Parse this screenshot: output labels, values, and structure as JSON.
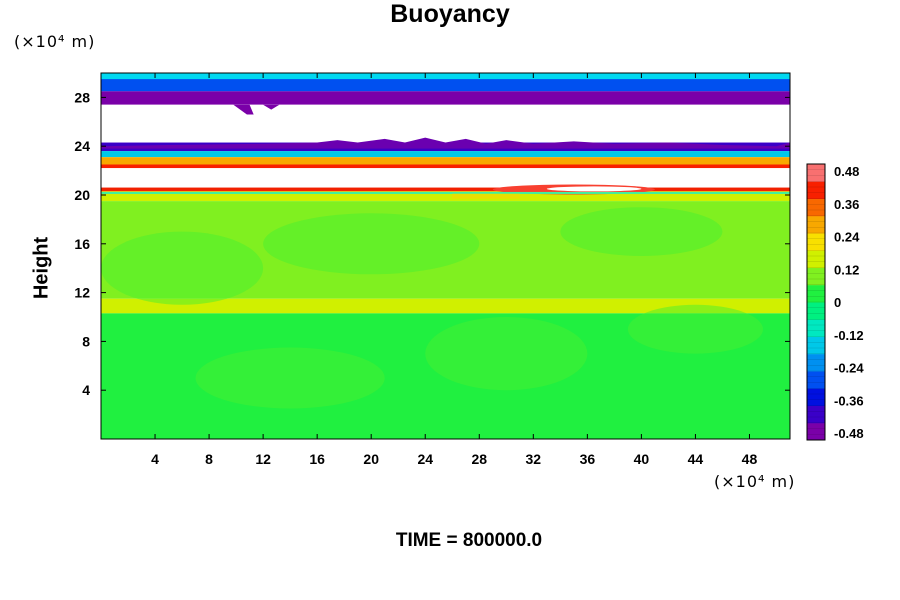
{
  "chart_data": {
    "type": "heatmap",
    "title": "Buoyancy",
    "ylabel": "Height",
    "xlabel": "",
    "x_unit": "(×10⁴ m)",
    "y_unit": "(×10⁴ m)",
    "xlim": [
      0,
      51
    ],
    "ylim": [
      0,
      30
    ],
    "x_ticks": [
      4,
      8,
      12,
      16,
      20,
      24,
      28,
      32,
      36,
      40,
      44,
      48
    ],
    "y_ticks": [
      4,
      8,
      12,
      16,
      20,
      24,
      28
    ],
    "colorbar": {
      "range": [
        -0.48,
        0.48
      ],
      "ticks": [
        "0.48",
        "0.36",
        "0.24",
        "0.12",
        "0",
        "-0.12",
        "-0.24",
        "-0.36",
        "-0.48"
      ],
      "colors": [
        "#7a00a8",
        "#3a00c8",
        "#0010e0",
        "#0050f0",
        "#0090f0",
        "#00c8e8",
        "#00e8c0",
        "#00f080",
        "#20f040",
        "#80f020",
        "#d0f000",
        "#f8e000",
        "#f8a800",
        "#f86800",
        "#f82000",
        "#f87070"
      ]
    },
    "bands": [
      {
        "y": [
          28.5,
          30.0
        ],
        "value": -0.26
      },
      {
        "y": [
          27.4,
          28.5
        ],
        "value": -0.46
      },
      {
        "y": [
          24.3,
          27.4
        ],
        "value": null
      },
      {
        "y": [
          23.6,
          24.3
        ],
        "value": -0.4
      },
      {
        "y": [
          23.1,
          23.6
        ],
        "value": -0.18
      },
      {
        "y": [
          22.5,
          23.1
        ],
        "value": 0.24
      },
      {
        "y": [
          22.2,
          22.5
        ],
        "value": 0.4
      },
      {
        "y": [
          20.6,
          22.2
        ],
        "value": null
      },
      {
        "y": [
          20.3,
          20.6
        ],
        "value": 0.4
      },
      {
        "y": [
          19.5,
          20.3
        ],
        "value": 0.14
      },
      {
        "y": [
          11.5,
          19.5
        ],
        "value": 0.06
      },
      {
        "y": [
          10.3,
          11.5
        ],
        "value": 0.13
      },
      {
        "y": [
          0.0,
          10.3
        ],
        "value": 0.02
      }
    ],
    "time_label": "TIME = 800000.0"
  }
}
